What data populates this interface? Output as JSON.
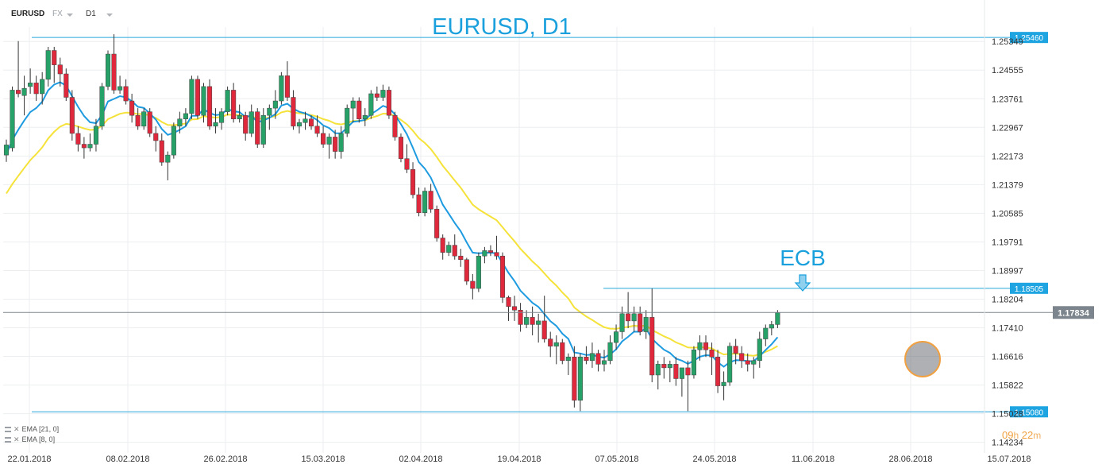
{
  "toolbar": {
    "symbol": "EURUSD",
    "market": "FX",
    "timeframe": "D1"
  },
  "legend": [
    {
      "label": "EMA [21, 0]"
    },
    {
      "label": "EMA [8, 0]"
    }
  ],
  "timer": {
    "hours": "09",
    "h": "h",
    "minutes": "22",
    "m": "m"
  },
  "chart_data": {
    "type": "candlestick",
    "title": "EURUSD, D1",
    "ylim": [
      1.1394,
      1.2575
    ],
    "yticks": [
      "1.25349",
      "1.24555",
      "1.23761",
      "1.22967",
      "1.22173",
      "1.21379",
      "1.20585",
      "1.19791",
      "1.18997",
      "1.18204",
      "1.17410",
      "1.16616",
      "1.15822",
      "1.15028",
      "1.14234"
    ],
    "xticks": [
      "22.01.2018",
      "08.02.2018",
      "26.02.2018",
      "15.03.2018",
      "02.04.2018",
      "19.04.2018",
      "07.05.2018",
      "24.05.2018",
      "11.06.2018",
      "28.06.2018",
      "15.07.2018"
    ],
    "colors": {
      "up": "#26a269",
      "down": "#e0283c",
      "ema8": "#1e9be0",
      "ema21": "#f5e23a",
      "level": "#26a6dc",
      "price": "#7c858d"
    },
    "levels": [
      {
        "value": 1.2546,
        "label": "1.25460"
      },
      {
        "value": 1.18505,
        "label": "1.18505"
      },
      {
        "value": 1.1508,
        "label": "1.15080"
      }
    ],
    "current_price": {
      "value": 1.17834,
      "label": "1.17834"
    },
    "annotation": {
      "text": "ECB",
      "date": "14.06.2018"
    },
    "candles": [
      [
        1.222,
        1.2263,
        1.2201,
        1.2248
      ],
      [
        1.224,
        1.241,
        1.223,
        1.24
      ],
      [
        1.24,
        1.2536,
        1.238,
        1.239
      ],
      [
        1.2385,
        1.244,
        1.233,
        1.2405
      ],
      [
        1.241,
        1.246,
        1.239,
        1.242
      ],
      [
        1.242,
        1.244,
        1.237,
        1.239
      ],
      [
        1.239,
        1.245,
        1.236,
        1.243
      ],
      [
        1.243,
        1.252,
        1.241,
        1.251
      ],
      [
        1.251,
        1.252,
        1.242,
        1.247
      ],
      [
        1.247,
        1.249,
        1.241,
        1.2445
      ],
      [
        1.2445,
        1.246,
        1.237,
        1.238
      ],
      [
        1.238,
        1.24,
        1.226,
        1.228
      ],
      [
        1.228,
        1.23,
        1.223,
        1.225
      ],
      [
        1.225,
        1.227,
        1.221,
        1.224
      ],
      [
        1.224,
        1.228,
        1.223,
        1.225
      ],
      [
        1.225,
        1.232,
        1.223,
        1.23
      ],
      [
        1.23,
        1.242,
        1.229,
        1.241
      ],
      [
        1.241,
        1.251,
        1.24,
        1.25
      ],
      [
        1.25,
        1.2555,
        1.239,
        1.24
      ],
      [
        1.24,
        1.244,
        1.239,
        1.241
      ],
      [
        1.241,
        1.243,
        1.236,
        1.237
      ],
      [
        1.237,
        1.239,
        1.231,
        1.233
      ],
      [
        1.233,
        1.235,
        1.229,
        1.23
      ],
      [
        1.23,
        1.235,
        1.229,
        1.234
      ],
      [
        1.234,
        1.235,
        1.227,
        1.228
      ],
      [
        1.228,
        1.23,
        1.223,
        1.226
      ],
      [
        1.226,
        1.228,
        1.219,
        1.22
      ],
      [
        1.22,
        1.223,
        1.215,
        1.222
      ],
      [
        1.222,
        1.231,
        1.221,
        1.23
      ],
      [
        1.23,
        1.234,
        1.228,
        1.232
      ],
      [
        1.232,
        1.235,
        1.23,
        1.2335
      ],
      [
        1.2335,
        1.244,
        1.232,
        1.243
      ],
      [
        1.243,
        1.244,
        1.232,
        1.233
      ],
      [
        1.233,
        1.242,
        1.231,
        1.241
      ],
      [
        1.241,
        1.243,
        1.229,
        1.23
      ],
      [
        1.23,
        1.235,
        1.228,
        1.231
      ],
      [
        1.231,
        1.235,
        1.229,
        1.234
      ],
      [
        1.234,
        1.241,
        1.233,
        1.24
      ],
      [
        1.24,
        1.242,
        1.231,
        1.232
      ],
      [
        1.232,
        1.236,
        1.231,
        1.233
      ],
      [
        1.233,
        1.234,
        1.226,
        1.228
      ],
      [
        1.228,
        1.236,
        1.227,
        1.234
      ],
      [
        1.234,
        1.235,
        1.224,
        1.225
      ],
      [
        1.225,
        1.235,
        1.224,
        1.233
      ],
      [
        1.233,
        1.236,
        1.229,
        1.235
      ],
      [
        1.235,
        1.24,
        1.232,
        1.237
      ],
      [
        1.237,
        1.245,
        1.236,
        1.244
      ],
      [
        1.244,
        1.248,
        1.237,
        1.238
      ],
      [
        1.238,
        1.24,
        1.229,
        1.23
      ],
      [
        1.23,
        1.232,
        1.228,
        1.231
      ],
      [
        1.231,
        1.234,
        1.229,
        1.232
      ],
      [
        1.232,
        1.233,
        1.229,
        1.23
      ],
      [
        1.23,
        1.233,
        1.227,
        1.228
      ],
      [
        1.228,
        1.23,
        1.224,
        1.225
      ],
      [
        1.225,
        1.228,
        1.221,
        1.227
      ],
      [
        1.227,
        1.229,
        1.221,
        1.223
      ],
      [
        1.223,
        1.23,
        1.221,
        1.228
      ],
      [
        1.228,
        1.236,
        1.227,
        1.235
      ],
      [
        1.235,
        1.238,
        1.231,
        1.237
      ],
      [
        1.237,
        1.238,
        1.231,
        1.232
      ],
      [
        1.232,
        1.235,
        1.23,
        1.233
      ],
      [
        1.233,
        1.24,
        1.232,
        1.239
      ],
      [
        1.239,
        1.241,
        1.237,
        1.238
      ],
      [
        1.238,
        1.2415,
        1.237,
        1.24
      ],
      [
        1.24,
        1.241,
        1.232,
        1.233
      ],
      [
        1.233,
        1.234,
        1.226,
        1.227
      ],
      [
        1.227,
        1.228,
        1.22,
        1.221
      ],
      [
        1.221,
        1.225,
        1.217,
        1.218
      ],
      [
        1.218,
        1.22,
        1.21,
        1.211
      ],
      [
        1.211,
        1.213,
        1.205,
        1.206
      ],
      [
        1.206,
        1.213,
        1.205,
        1.212
      ],
      [
        1.212,
        1.214,
        1.206,
        1.207
      ],
      [
        1.207,
        1.208,
        1.198,
        1.199
      ],
      [
        1.199,
        1.2,
        1.193,
        1.195
      ],
      [
        1.195,
        1.198,
        1.194,
        1.197
      ],
      [
        1.197,
        1.2,
        1.193,
        1.194
      ],
      [
        1.194,
        1.196,
        1.191,
        1.193
      ],
      [
        1.193,
        1.1935,
        1.186,
        1.187
      ],
      [
        1.187,
        1.189,
        1.182,
        1.185
      ],
      [
        1.185,
        1.195,
        1.184,
        1.194
      ],
      [
        1.194,
        1.1965,
        1.192,
        1.1955
      ],
      [
        1.1955,
        1.197,
        1.194,
        1.195
      ],
      [
        1.195,
        1.1996,
        1.193,
        1.194
      ],
      [
        1.194,
        1.195,
        1.181,
        1.1825
      ],
      [
        1.1825,
        1.183,
        1.176,
        1.18
      ],
      [
        1.18,
        1.183,
        1.176,
        1.179
      ],
      [
        1.179,
        1.181,
        1.173,
        1.175
      ],
      [
        1.175,
        1.179,
        1.174,
        1.177
      ],
      [
        1.177,
        1.18,
        1.172,
        1.175
      ],
      [
        1.175,
        1.178,
        1.17,
        1.176
      ],
      [
        1.176,
        1.183,
        1.17,
        1.171
      ],
      [
        1.171,
        1.173,
        1.166,
        1.169
      ],
      [
        1.169,
        1.172,
        1.164,
        1.17
      ],
      [
        1.17,
        1.171,
        1.164,
        1.165
      ],
      [
        1.165,
        1.167,
        1.161,
        1.166
      ],
      [
        1.166,
        1.169,
        1.152,
        1.154
      ],
      [
        1.154,
        1.167,
        1.151,
        1.166
      ],
      [
        1.166,
        1.169,
        1.164,
        1.165
      ],
      [
        1.165,
        1.17,
        1.163,
        1.167
      ],
      [
        1.167,
        1.168,
        1.162,
        1.164
      ],
      [
        1.164,
        1.168,
        1.162,
        1.165
      ],
      [
        1.165,
        1.172,
        1.164,
        1.17
      ],
      [
        1.17,
        1.175,
        1.168,
        1.173
      ],
      [
        1.173,
        1.18,
        1.171,
        1.178
      ],
      [
        1.178,
        1.184,
        1.174,
        1.176
      ],
      [
        1.176,
        1.18,
        1.173,
        1.178
      ],
      [
        1.178,
        1.18,
        1.172,
        1.173
      ],
      [
        1.173,
        1.179,
        1.171,
        1.177
      ],
      [
        1.177,
        1.185,
        1.159,
        1.161
      ],
      [
        1.161,
        1.165,
        1.157,
        1.164
      ],
      [
        1.164,
        1.166,
        1.16,
        1.163
      ],
      [
        1.163,
        1.165,
        1.159,
        1.164
      ],
      [
        1.164,
        1.166,
        1.158,
        1.16
      ],
      [
        1.16,
        1.162,
        1.155,
        1.163
      ],
      [
        1.163,
        1.165,
        1.151,
        1.161
      ],
      [
        1.161,
        1.169,
        1.16,
        1.168
      ],
      [
        1.168,
        1.172,
        1.165,
        1.17
      ],
      [
        1.17,
        1.172,
        1.166,
        1.168
      ],
      [
        1.168,
        1.17,
        1.161,
        1.166
      ],
      [
        1.166,
        1.168,
        1.156,
        1.158
      ],
      [
        1.158,
        1.162,
        1.154,
        1.159
      ],
      [
        1.159,
        1.17,
        1.158,
        1.169
      ],
      [
        1.169,
        1.171,
        1.164,
        1.167
      ],
      [
        1.167,
        1.169,
        1.163,
        1.165
      ],
      [
        1.165,
        1.167,
        1.162,
        1.164
      ],
      [
        1.164,
        1.166,
        1.16,
        1.165
      ],
      [
        1.165,
        1.173,
        1.163,
        1.171
      ],
      [
        1.171,
        1.175,
        1.169,
        1.174
      ],
      [
        1.174,
        1.176,
        1.172,
        1.175
      ],
      [
        1.175,
        1.179,
        1.174,
        1.1783
      ]
    ]
  }
}
